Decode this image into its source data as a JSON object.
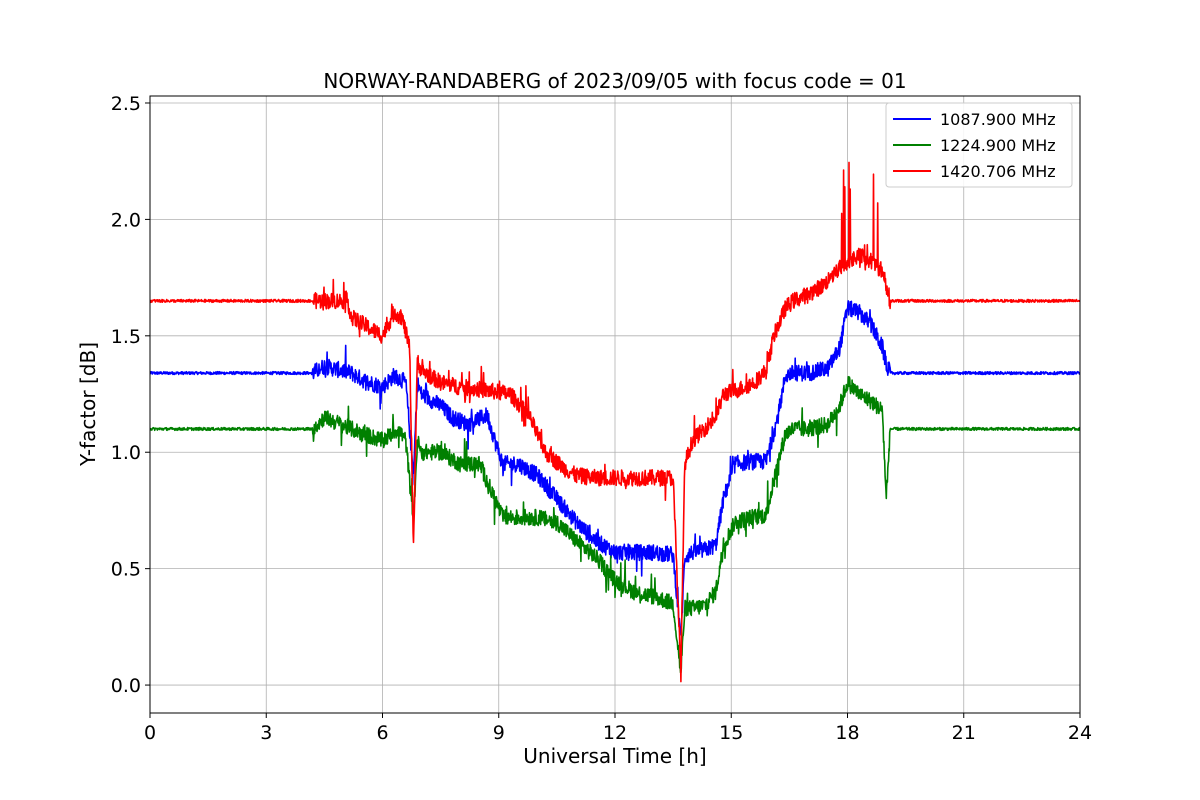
{
  "chart_data": {
    "type": "line",
    "title": "NORWAY-RANDABERG of 2023/09/05 with focus code = 01",
    "xlabel": "Universal Time [h]",
    "ylabel": "Y-factor [dB]",
    "xlim": [
      0,
      24
    ],
    "ylim": [
      -0.12,
      2.53
    ],
    "xticks": [
      0,
      3,
      6,
      9,
      12,
      15,
      18,
      21,
      24
    ],
    "xtick_labels": [
      "0",
      "3",
      "6",
      "9",
      "12",
      "15",
      "18",
      "21",
      "24"
    ],
    "yticks": [
      0.0,
      0.5,
      1.0,
      1.5,
      2.0,
      2.5
    ],
    "ytick_labels": [
      "0.0",
      "0.5",
      "1.0",
      "1.5",
      "2.0",
      "2.5"
    ],
    "grid": true,
    "legend_position": "top-right",
    "series": [
      {
        "name": "1087.900 MHz",
        "color": "#0000ff",
        "x": [
          0,
          4.2,
          4.5,
          5.2,
          5.5,
          6.0,
          6.3,
          6.6,
          6.8,
          6.9,
          7.0,
          7.5,
          7.8,
          8.2,
          8.7,
          8.9,
          9.1,
          9.5,
          10.0,
          10.5,
          11.0,
          11.5,
          12.0,
          12.5,
          13.0,
          13.5,
          13.7,
          13.8,
          14.0,
          14.3,
          14.6,
          14.8,
          15.1,
          15.5,
          15.9,
          16.2,
          16.4,
          16.6,
          17.0,
          17.5,
          17.8,
          18.0,
          18.3,
          18.6,
          18.9,
          19.0,
          19.1,
          20.0,
          24.0
        ],
        "values": [
          1.34,
          1.34,
          1.37,
          1.34,
          1.31,
          1.28,
          1.33,
          1.3,
          0.9,
          1.3,
          1.25,
          1.2,
          1.15,
          1.12,
          1.16,
          1.05,
          0.95,
          0.95,
          0.9,
          0.8,
          0.7,
          0.62,
          0.57,
          0.57,
          0.57,
          0.56,
          0.2,
          0.55,
          0.57,
          0.58,
          0.6,
          0.8,
          0.95,
          0.96,
          0.96,
          1.15,
          1.33,
          1.34,
          1.34,
          1.36,
          1.45,
          1.62,
          1.6,
          1.55,
          1.45,
          1.38,
          1.34,
          1.34,
          1.34
        ]
      },
      {
        "name": "1224.900 MHz",
        "color": "#008000",
        "x": [
          0,
          4.2,
          4.5,
          5.2,
          5.5,
          6.0,
          6.4,
          6.6,
          6.8,
          6.9,
          7.0,
          7.5,
          8.0,
          8.5,
          8.9,
          9.1,
          9.5,
          10.0,
          10.5,
          11.0,
          11.5,
          12.0,
          12.5,
          13.0,
          13.5,
          13.7,
          13.8,
          14.0,
          14.3,
          14.6,
          14.8,
          15.1,
          15.5,
          15.9,
          16.2,
          16.4,
          16.6,
          17.0,
          17.5,
          17.8,
          18.0,
          18.3,
          18.6,
          18.9,
          19.0,
          19.1,
          20.0,
          24.0
        ],
        "values": [
          1.1,
          1.1,
          1.15,
          1.1,
          1.08,
          1.05,
          1.1,
          1.05,
          0.7,
          1.05,
          1.0,
          1.0,
          0.95,
          0.95,
          0.8,
          0.72,
          0.72,
          0.72,
          0.7,
          0.62,
          0.55,
          0.45,
          0.4,
          0.38,
          0.35,
          0.05,
          0.33,
          0.33,
          0.34,
          0.4,
          0.6,
          0.7,
          0.72,
          0.73,
          0.95,
          1.08,
          1.1,
          1.1,
          1.12,
          1.2,
          1.3,
          1.25,
          1.22,
          1.18,
          0.8,
          1.1,
          1.1,
          1.1
        ]
      },
      {
        "name": "1420.706 MHz",
        "color": "#ff0000",
        "x": [
          0,
          5.1,
          5.2,
          5.5,
          6.0,
          6.3,
          6.5,
          6.7,
          6.8,
          6.9,
          7.0,
          7.5,
          8.0,
          8.5,
          8.9,
          9.3,
          9.8,
          10.2,
          10.7,
          11.0,
          11.5,
          12.0,
          12.5,
          13.0,
          13.5,
          13.7,
          13.8,
          14.0,
          14.3,
          14.6,
          14.8,
          15.2,
          15.6,
          15.9,
          16.1,
          16.4,
          16.6,
          17.0,
          17.4,
          17.7,
          18.0,
          18.3,
          18.6,
          18.9,
          19.0,
          19.1,
          20.0,
          24.0
        ],
        "values": [
          1.65,
          1.65,
          1.58,
          1.55,
          1.5,
          1.6,
          1.58,
          1.45,
          0.6,
          1.4,
          1.35,
          1.3,
          1.28,
          1.27,
          1.26,
          1.25,
          1.15,
          1.0,
          0.93,
          0.9,
          0.89,
          0.89,
          0.89,
          0.89,
          0.89,
          0.05,
          0.95,
          1.05,
          1.1,
          1.15,
          1.25,
          1.27,
          1.3,
          1.35,
          1.5,
          1.62,
          1.65,
          1.68,
          1.72,
          1.78,
          1.82,
          1.85,
          1.82,
          1.78,
          1.72,
          1.65,
          1.65,
          1.65
        ]
      }
    ]
  }
}
